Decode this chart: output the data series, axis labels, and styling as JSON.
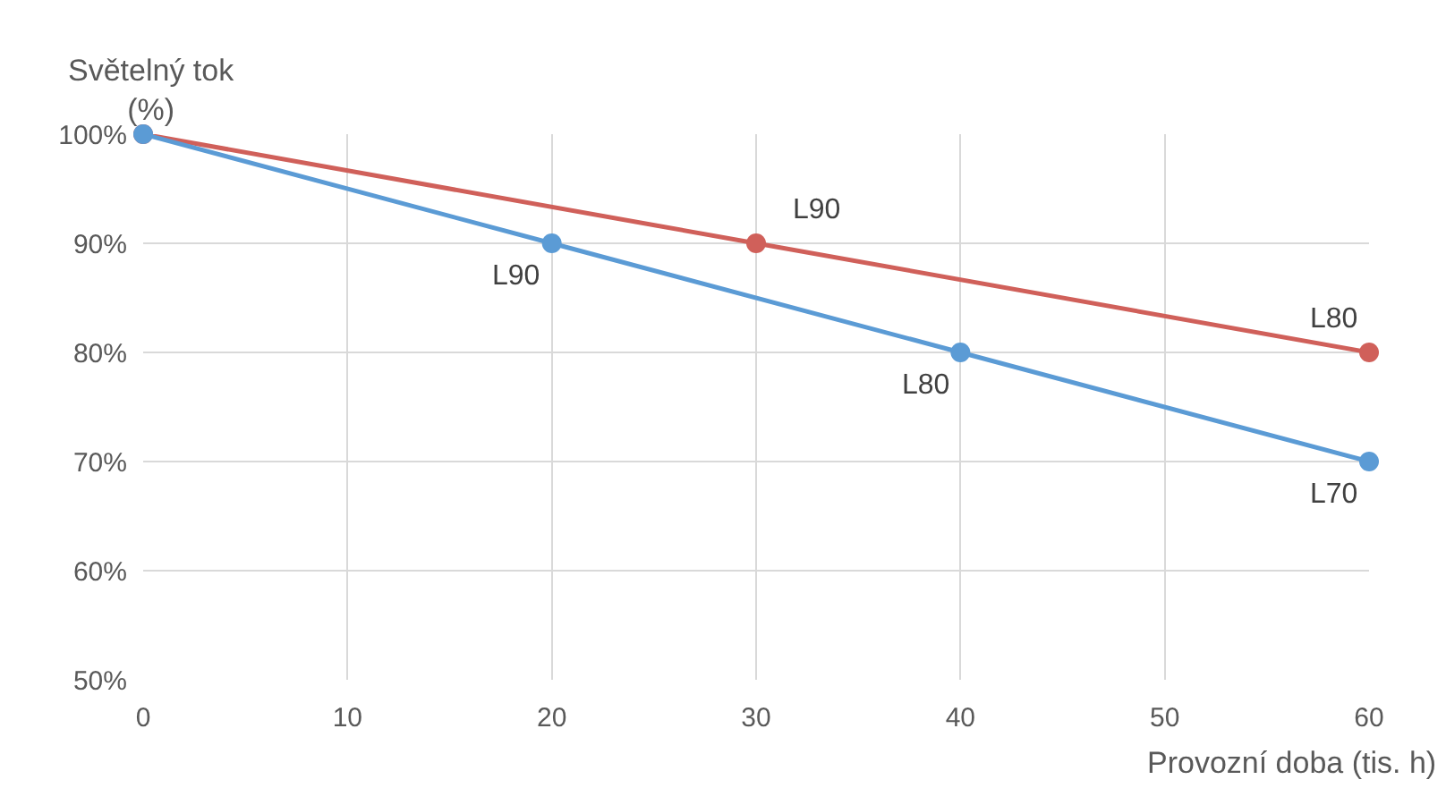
{
  "chart_data": {
    "type": "line",
    "xlabel": "Provozní doba (tis. h)",
    "ylabel": "Světelný tok\n(%)",
    "series": [
      {
        "color": "#d0605a",
        "x": [
          0,
          30,
          60
        ],
        "values": [
          100,
          90,
          80
        ]
      },
      {
        "color": "#5b9bd5",
        "x": [
          0,
          20,
          40,
          60
        ],
        "values": [
          100,
          90,
          80,
          70
        ]
      }
    ],
    "annotations": [
      {
        "text": "L90",
        "x": 30,
        "y": 90
      },
      {
        "text": "L80",
        "x": 60,
        "y": 80
      },
      {
        "text": "L90",
        "x": 20,
        "y": 90
      },
      {
        "text": "L80",
        "x": 40,
        "y": 80
      },
      {
        "text": "L70",
        "x": 60,
        "y": 70
      }
    ],
    "xlim": [
      0,
      60
    ],
    "xticks": [
      0,
      10,
      20,
      30,
      40,
      50,
      60
    ],
    "ylim": [
      50,
      100
    ],
    "yticks": [
      {
        "value": 50,
        "label": "50%"
      },
      {
        "value": 60,
        "label": "60%"
      },
      {
        "value": 70,
        "label": "70%"
      },
      {
        "value": 80,
        "label": "80%"
      },
      {
        "value": 90,
        "label": "90%"
      },
      {
        "value": 100,
        "label": "100%"
      }
    ],
    "grid": true,
    "marker": "circle",
    "line_style": "solid"
  }
}
